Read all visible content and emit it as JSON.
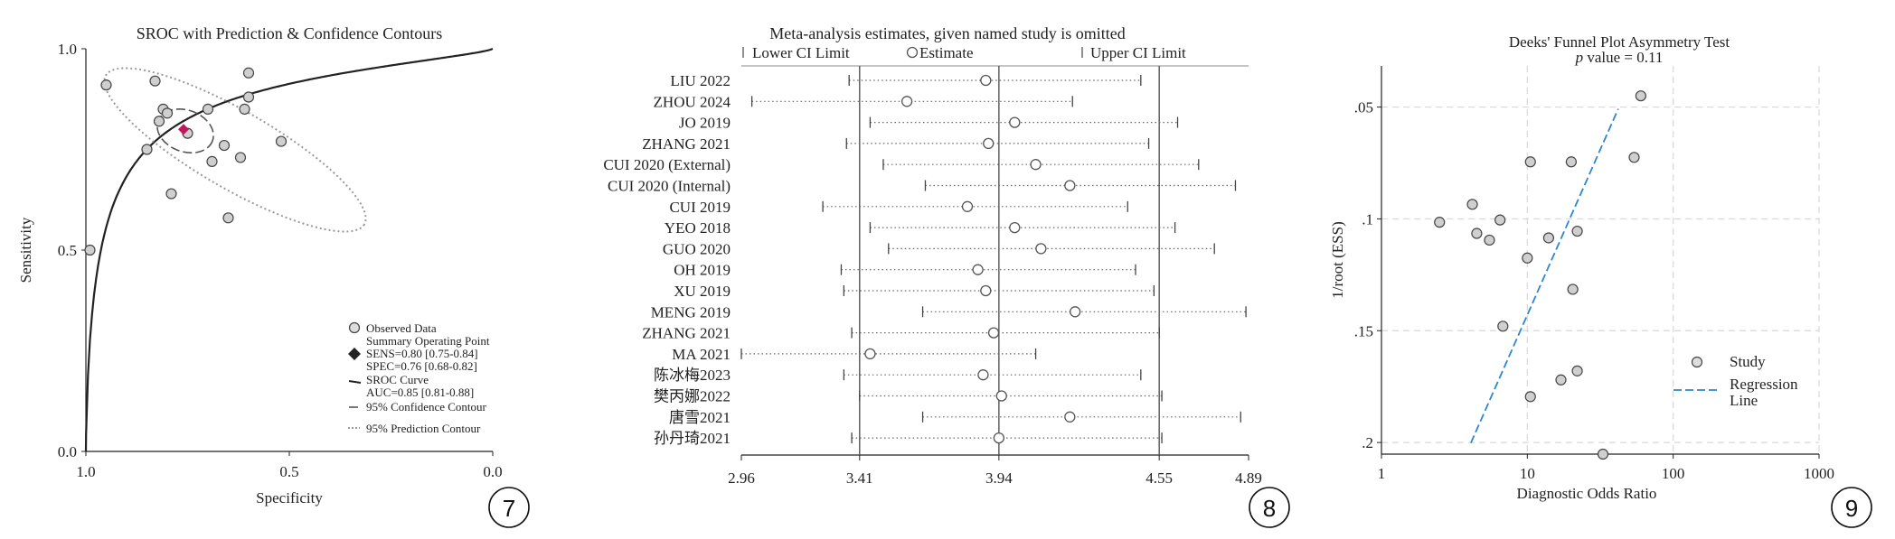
{
  "panels": {
    "sroc": {
      "badge": "7",
      "chart_data": {
        "type": "scatter",
        "title": "SROC with Prediction & Confidence Contours",
        "xlabel": "Specificity",
        "ylabel": "Sensitivity",
        "xlim": [
          1.0,
          0.0
        ],
        "ylim": [
          0.0,
          1.0
        ],
        "xticks": [
          "1.0",
          "0.5",
          "0.0"
        ],
        "yticks": [
          "0.0",
          "0.5",
          "1.0"
        ],
        "points": [
          {
            "spec": 0.95,
            "sens": 0.91
          },
          {
            "spec": 0.83,
            "sens": 0.92
          },
          {
            "spec": 0.81,
            "sens": 0.85
          },
          {
            "spec": 0.8,
            "sens": 0.84
          },
          {
            "spec": 0.82,
            "sens": 0.82
          },
          {
            "spec": 0.7,
            "sens": 0.85
          },
          {
            "spec": 0.61,
            "sens": 0.85
          },
          {
            "spec": 0.6,
            "sens": 0.94
          },
          {
            "spec": 0.6,
            "sens": 0.88
          },
          {
            "spec": 0.75,
            "sens": 0.79
          },
          {
            "spec": 0.85,
            "sens": 0.75
          },
          {
            "spec": 0.66,
            "sens": 0.76
          },
          {
            "spec": 0.62,
            "sens": 0.73
          },
          {
            "spec": 0.69,
            "sens": 0.72
          },
          {
            "spec": 0.52,
            "sens": 0.77
          },
          {
            "spec": 0.79,
            "sens": 0.64
          },
          {
            "spec": 0.65,
            "sens": 0.58
          },
          {
            "spec": 0.99,
            "sens": 0.5
          }
        ],
        "summary_point": {
          "spec": 0.76,
          "sens": 0.8
        },
        "legend": {
          "observed": "Observed Data",
          "summary": "Summary Operating Point",
          "sens": "SENS=0.80 [0.75-0.84]",
          "spec": "SPEC=0.76 [0.68-0.82]",
          "sroc": "SROC Curve",
          "auc": "AUC=0.85 [0.81-0.88]",
          "conf": "95% Confidence Contour",
          "pred": "95% Prediction Contour"
        },
        "colors": {
          "summary": "#c0185a",
          "curve": "#222222",
          "points": "#888888"
        }
      }
    },
    "sensitivity": {
      "badge": "8",
      "chart_data": {
        "type": "forest",
        "title": "Meta-analysis estimates, given named study is omitted",
        "legend": {
          "lower": "Lower CI Limit",
          "estimate": "Estimate",
          "upper": "Upper CI Limit"
        },
        "xlim": [
          2.96,
          4.89
        ],
        "xticks": [
          "2.96",
          "3.41",
          "3.94",
          "4.55",
          "4.89"
        ],
        "reference_lines": [
          3.41,
          3.94,
          4.55
        ],
        "studies": [
          {
            "name": "LIU 2022",
            "lower": 3.37,
            "estimate": 3.89,
            "upper": 4.48
          },
          {
            "name": "ZHOU 2024",
            "lower": 3.0,
            "estimate": 3.59,
            "upper": 4.22
          },
          {
            "name": "JO 2019",
            "lower": 3.45,
            "estimate": 4.0,
            "upper": 4.62
          },
          {
            "name": "ZHANG 2021",
            "lower": 3.36,
            "estimate": 3.9,
            "upper": 4.51
          },
          {
            "name": "CUI 2020 (External)",
            "lower": 3.5,
            "estimate": 4.08,
            "upper": 4.7
          },
          {
            "name": "CUI 2020 (Internal)",
            "lower": 3.66,
            "estimate": 4.21,
            "upper": 4.84
          },
          {
            "name": "CUI 2019",
            "lower": 3.27,
            "estimate": 3.82,
            "upper": 4.43
          },
          {
            "name": "YEO 2018",
            "lower": 3.45,
            "estimate": 4.0,
            "upper": 4.61
          },
          {
            "name": "GUO 2020",
            "lower": 3.52,
            "estimate": 4.1,
            "upper": 4.76
          },
          {
            "name": "OH 2019",
            "lower": 3.34,
            "estimate": 3.86,
            "upper": 4.46
          },
          {
            "name": "XU 2019",
            "lower": 3.35,
            "estimate": 3.89,
            "upper": 4.53
          },
          {
            "name": "MENG 2019",
            "lower": 3.65,
            "estimate": 4.23,
            "upper": 4.88
          },
          {
            "name": "ZHANG 2021",
            "lower": 3.38,
            "estimate": 3.92,
            "upper": 4.55
          },
          {
            "name": "MA 2021",
            "lower": 2.96,
            "estimate": 3.45,
            "upper": 4.08
          },
          {
            "name": "陈冰梅2023",
            "lower": 3.35,
            "estimate": 3.88,
            "upper": 4.48
          },
          {
            "name": "樊丙娜2022",
            "lower": 3.41,
            "estimate": 3.95,
            "upper": 4.56
          },
          {
            "name": "唐雪2021",
            "lower": 3.65,
            "estimate": 4.21,
            "upper": 4.86
          },
          {
            "name": "孙丹琦2021",
            "lower": 3.38,
            "estimate": 3.94,
            "upper": 4.56
          }
        ]
      }
    },
    "deeks": {
      "badge": "9",
      "chart_data": {
        "type": "scatter",
        "title": "Deeks' Funnel Plot Asymmetry Test",
        "subtitle_italic": "p",
        "subtitle_rest": " value = 0.11",
        "xlabel": "Diagnostic Odds Ratio",
        "ylabel": "1/root (ESS)",
        "x_scale": "log",
        "xlim": [
          1,
          1000
        ],
        "ylim": [
          0.2052,
          0.0316
        ],
        "xticks": [
          "1",
          "10",
          "100",
          "1000"
        ],
        "yticks": [
          ".05",
          ".1",
          ".15",
          ".2"
        ],
        "points": [
          {
            "dor": 60,
            "y": 0.045
          },
          {
            "dor": 54,
            "y": 0.0725
          },
          {
            "dor": 10.5,
            "y": 0.0745
          },
          {
            "dor": 20,
            "y": 0.0745
          },
          {
            "dor": 4.2,
            "y": 0.0935
          },
          {
            "dor": 2.5,
            "y": 0.1015
          },
          {
            "dor": 6.5,
            "y": 0.1005
          },
          {
            "dor": 4.5,
            "y": 0.1065
          },
          {
            "dor": 5.5,
            "y": 0.1095
          },
          {
            "dor": 14,
            "y": 0.1085
          },
          {
            "dor": 22,
            "y": 0.1055
          },
          {
            "dor": 10,
            "y": 0.1175
          },
          {
            "dor": 20.5,
            "y": 0.1315
          },
          {
            "dor": 6.8,
            "y": 0.148
          },
          {
            "dor": 22,
            "y": 0.168
          },
          {
            "dor": 17,
            "y": 0.172
          },
          {
            "dor": 10.5,
            "y": 0.1795
          },
          {
            "dor": 33,
            "y": 0.2052
          }
        ],
        "regression_line": [
          {
            "dor": 4.1,
            "y": 0.2002
          },
          {
            "dor": 42,
            "y": 0.0508
          }
        ],
        "legend": {
          "study": "Study",
          "regression": "Regression\nLine"
        },
        "colors": {
          "regression": "#2e86d0",
          "grid": "#d8d8d8"
        }
      }
    }
  }
}
